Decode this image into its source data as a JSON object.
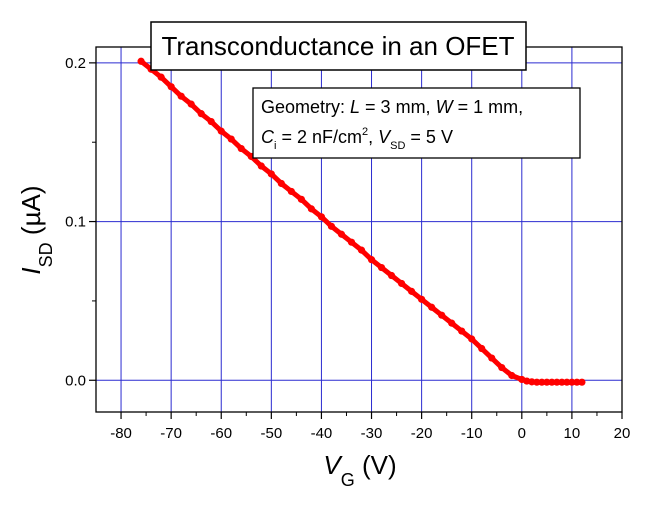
{
  "chart_data": {
    "type": "scatter",
    "title": "Transconductance in an OFET",
    "xlabel": {
      "symbol": "V",
      "sub": "G",
      "unit": " (V)"
    },
    "ylabel": {
      "symbol": "I",
      "sub": "SD",
      "unit": " (µA)"
    },
    "xlim": [
      -85,
      20
    ],
    "ylim": [
      -0.02,
      0.21
    ],
    "xticks": [
      -80,
      -70,
      -60,
      -50,
      -40,
      -30,
      -20,
      -10,
      0,
      10,
      20
    ],
    "yticks": [
      0.0,
      0.1,
      0.2
    ],
    "ytick_labels": [
      "0.0",
      "0.1",
      "0.2"
    ],
    "grid": true,
    "grid_color": "#2b2bd0",
    "marker_color": "#ff0000",
    "annotation": {
      "line1_prefix": "Geometry: ",
      "L_sym": "L",
      "L_val": " = 3 mm, ",
      "W_sym": "W",
      "W_val": " = 1 mm,",
      "C_sym": "C",
      "C_sub": "i",
      "C_val": " = 2 nF/cm",
      "C_sup": "2",
      "comma": ", ",
      "V_sym": "V",
      "V_sub": "SD",
      "V_val": " = 5 V"
    },
    "series": [
      {
        "x": [
          -76,
          -74,
          -72,
          -70,
          -68,
          -66,
          -64,
          -62,
          -60,
          -58,
          -56,
          -54,
          -52,
          -50,
          -48,
          -46,
          -44,
          -42,
          -40,
          -38,
          -36,
          -34,
          -32,
          -30,
          -28,
          -26,
          -24,
          -22,
          -20,
          -18,
          -16,
          -14,
          -12,
          -10,
          -8,
          -6,
          -4,
          -2,
          0,
          1,
          2,
          3,
          4,
          5,
          6,
          7,
          8,
          9,
          10,
          11,
          12
        ],
        "y": [
          0.201,
          0.196,
          0.191,
          0.185,
          0.179,
          0.174,
          0.168,
          0.163,
          0.157,
          0.152,
          0.146,
          0.141,
          0.135,
          0.13,
          0.124,
          0.119,
          0.114,
          0.108,
          0.103,
          0.097,
          0.092,
          0.087,
          0.082,
          0.076,
          0.071,
          0.066,
          0.061,
          0.056,
          0.051,
          0.046,
          0.041,
          0.036,
          0.031,
          0.026,
          0.02,
          0.014,
          0.008,
          0.003,
          0.0005,
          -0.0005,
          -0.001,
          -0.0012,
          -0.0012,
          -0.0012,
          -0.0012,
          -0.0012,
          -0.0012,
          -0.0012,
          -0.0012,
          -0.0012,
          -0.0012
        ]
      }
    ]
  }
}
